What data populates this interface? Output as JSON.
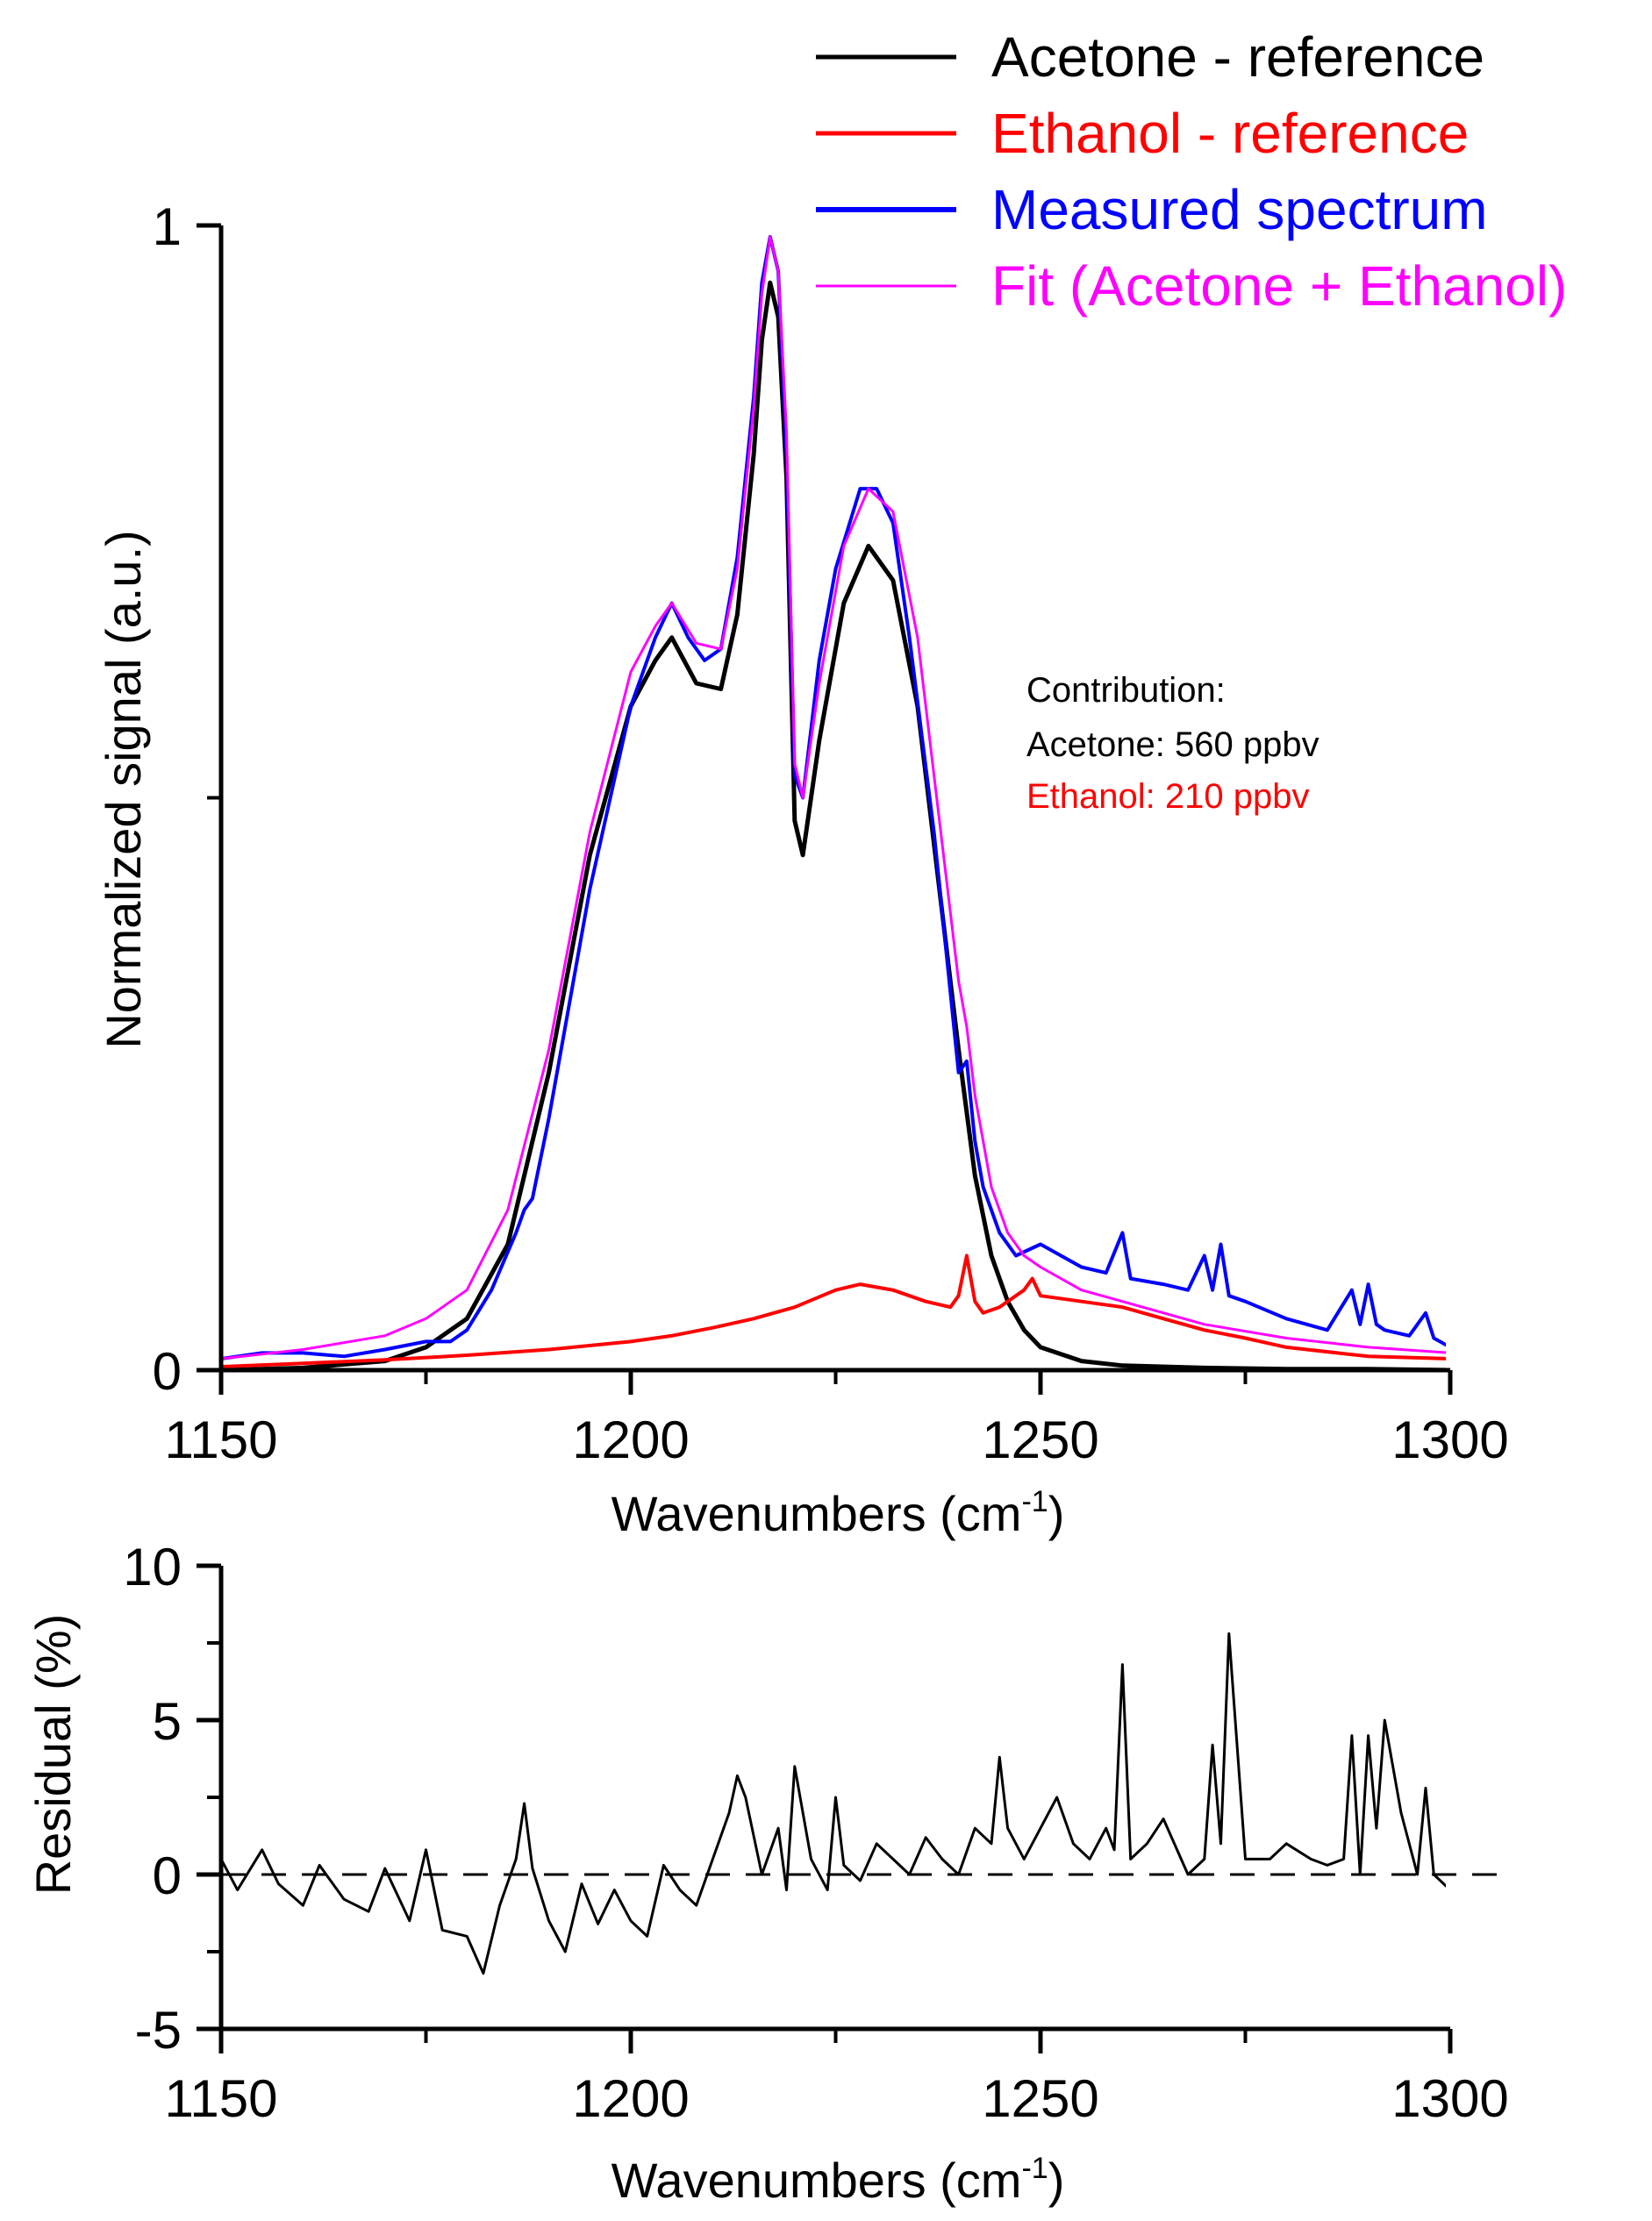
{
  "chart_data": [
    {
      "type": "line",
      "xlabel": "Wavenumbers (cm",
      "xlabel_sup": "-1",
      "xlabel_close": ")",
      "ylabel": "Normalized signal (a.u.)",
      "xlim": [
        1150,
        1300
      ],
      "ylim": [
        0,
        1
      ],
      "xticks": [
        1150,
        1200,
        1250,
        1300
      ],
      "xtick_labels": [
        "1150",
        "1200",
        "1250",
        "1300"
      ],
      "yticks": [
        0,
        1
      ],
      "ytick_labels": [
        "0",
        "1"
      ],
      "legend": {
        "position": "top-right",
        "entries": [
          {
            "label": "Acetone - reference",
            "color": "#000000"
          },
          {
            "label": "Ethanol - reference",
            "color": "#ff0000"
          },
          {
            "label": "Measured spectrum",
            "color": "#0000ff"
          },
          {
            "label": "Fit (Acetone + Ethanol)",
            "color": "#ff00ff"
          }
        ]
      },
      "annotation": {
        "title": "Contribution:",
        "acetone": "Acetone: 560 ppbv",
        "ethanol": "Ethanol: 210 ppbv",
        "acetone_color": "#000000",
        "ethanol_color": "#ff0000"
      },
      "series": [
        {
          "name": "Acetone - reference",
          "color": "#000000",
          "x": [
            1150,
            1160,
            1170,
            1175,
            1180,
            1185,
            1190,
            1195,
            1200,
            1203,
            1205,
            1208,
            1211,
            1213,
            1215,
            1216,
            1217,
            1218,
            1219,
            1220,
            1221,
            1223,
            1226,
            1229,
            1232,
            1235,
            1238,
            1240,
            1242,
            1244,
            1246,
            1248,
            1250,
            1255,
            1260,
            1270,
            1280,
            1290,
            1300
          ],
          "y": [
            0.0,
            0.002,
            0.008,
            0.02,
            0.045,
            0.11,
            0.26,
            0.45,
            0.58,
            0.62,
            0.64,
            0.6,
            0.595,
            0.66,
            0.8,
            0.9,
            0.95,
            0.92,
            0.78,
            0.48,
            0.45,
            0.55,
            0.67,
            0.72,
            0.69,
            0.58,
            0.4,
            0.28,
            0.17,
            0.1,
            0.06,
            0.035,
            0.02,
            0.008,
            0.004,
            0.002,
            0.001,
            0.001,
            0.0
          ]
        },
        {
          "name": "Ethanol - reference",
          "color": "#ff0000",
          "x": [
            1150,
            1160,
            1170,
            1180,
            1190,
            1200,
            1205,
            1210,
            1215,
            1220,
            1225,
            1228,
            1232,
            1236,
            1239,
            1240,
            1241,
            1242,
            1243,
            1245,
            1248,
            1249,
            1250,
            1255,
            1260,
            1265,
            1270,
            1275,
            1280,
            1290,
            1300
          ],
          "y": [
            0.003,
            0.006,
            0.009,
            0.013,
            0.018,
            0.025,
            0.03,
            0.037,
            0.045,
            0.055,
            0.07,
            0.075,
            0.07,
            0.06,
            0.055,
            0.065,
            0.1,
            0.06,
            0.05,
            0.055,
            0.07,
            0.08,
            0.065,
            0.06,
            0.055,
            0.045,
            0.035,
            0.028,
            0.02,
            0.012,
            0.01
          ]
        },
        {
          "name": "Measured spectrum",
          "color": "#0000ff",
          "x": [
            1150,
            1155,
            1160,
            1165,
            1170,
            1175,
            1178,
            1180,
            1183,
            1186,
            1187,
            1188,
            1190,
            1195,
            1200,
            1203,
            1205,
            1207,
            1209,
            1211,
            1213,
            1215,
            1216,
            1217,
            1218,
            1219,
            1220,
            1221,
            1222,
            1223,
            1225,
            1228,
            1230,
            1232,
            1234,
            1237,
            1239,
            1240,
            1241,
            1242,
            1243,
            1245,
            1247,
            1250,
            1255,
            1258,
            1260,
            1261,
            1265,
            1268,
            1270,
            1271,
            1272,
            1273,
            1275,
            1280,
            1285,
            1288,
            1289,
            1290,
            1291,
            1292,
            1295,
            1297,
            1298,
            1300
          ],
          "y": [
            0.01,
            0.015,
            0.015,
            0.012,
            0.018,
            0.025,
            0.025,
            0.035,
            0.07,
            0.12,
            0.14,
            0.15,
            0.22,
            0.42,
            0.58,
            0.64,
            0.67,
            0.64,
            0.62,
            0.63,
            0.71,
            0.85,
            0.95,
            0.99,
            0.96,
            0.8,
            0.52,
            0.5,
            0.56,
            0.62,
            0.7,
            0.77,
            0.77,
            0.74,
            0.64,
            0.47,
            0.33,
            0.26,
            0.27,
            0.2,
            0.16,
            0.12,
            0.1,
            0.11,
            0.09,
            0.085,
            0.12,
            0.08,
            0.075,
            0.07,
            0.1,
            0.07,
            0.11,
            0.065,
            0.06,
            0.045,
            0.035,
            0.07,
            0.04,
            0.075,
            0.04,
            0.035,
            0.03,
            0.05,
            0.028,
            0.02
          ]
        },
        {
          "name": "Fit (Acetone + Ethanol)",
          "color": "#ff00ff",
          "x": [
            1150,
            1160,
            1170,
            1175,
            1180,
            1185,
            1190,
            1195,
            1200,
            1203,
            1205,
            1208,
            1211,
            1213,
            1215,
            1216,
            1217,
            1218,
            1219,
            1220,
            1221,
            1223,
            1226,
            1229,
            1232,
            1235,
            1238,
            1240,
            1241,
            1242,
            1244,
            1246,
            1248,
            1250,
            1255,
            1260,
            1270,
            1280,
            1290,
            1300
          ],
          "y": [
            0.01,
            0.018,
            0.03,
            0.045,
            0.07,
            0.14,
            0.28,
            0.47,
            0.61,
            0.65,
            0.67,
            0.635,
            0.63,
            0.7,
            0.84,
            0.94,
            0.99,
            0.96,
            0.82,
            0.53,
            0.5,
            0.6,
            0.72,
            0.77,
            0.75,
            0.64,
            0.46,
            0.34,
            0.3,
            0.24,
            0.16,
            0.12,
            0.1,
            0.09,
            0.07,
            0.06,
            0.04,
            0.028,
            0.02,
            0.015
          ]
        }
      ]
    },
    {
      "type": "line",
      "xlabel": "Wavenumbers (cm",
      "xlabel_sup": "-1",
      "xlabel_close": ")",
      "ylabel": "Residual (%)",
      "xlim": [
        1150,
        1300
      ],
      "ylim": [
        -5,
        10
      ],
      "xticks": [
        1150,
        1200,
        1250,
        1300
      ],
      "xtick_labels": [
        "1150",
        "1200",
        "1250",
        "1300"
      ],
      "yticks": [
        -5,
        0,
        5,
        10
      ],
      "ytick_labels": [
        "-5",
        "0",
        "5",
        "10"
      ],
      "zero_line": {
        "y": 0,
        "style": "dashed"
      },
      "series": [
        {
          "name": "Residual",
          "color": "#000000",
          "x": [
            1150,
            1152,
            1155,
            1157,
            1160,
            1162,
            1165,
            1168,
            1170,
            1173,
            1175,
            1177,
            1180,
            1182,
            1184,
            1186,
            1187,
            1188,
            1190,
            1192,
            1194,
            1196,
            1198,
            1200,
            1202,
            1204,
            1206,
            1208,
            1210,
            1212,
            1213,
            1214,
            1216,
            1218,
            1219,
            1220,
            1222,
            1224,
            1225,
            1226,
            1228,
            1230,
            1232,
            1234,
            1236,
            1238,
            1240,
            1242,
            1244,
            1245,
            1246,
            1248,
            1250,
            1252,
            1254,
            1256,
            1258,
            1259,
            1260,
            1261,
            1263,
            1265,
            1268,
            1270,
            1271,
            1272,
            1273,
            1275,
            1278,
            1280,
            1283,
            1285,
            1287,
            1288,
            1289,
            1290,
            1291,
            1292,
            1294,
            1296,
            1297,
            1298,
            1300
          ],
          "y": [
            0.5,
            -0.5,
            0.8,
            -0.3,
            -1.0,
            0.3,
            -0.8,
            -1.2,
            0.2,
            -1.5,
            0.8,
            -1.8,
            -2.0,
            -3.2,
            -1.0,
            0.5,
            2.3,
            0.2,
            -1.5,
            -2.5,
            -0.3,
            -1.6,
            -0.5,
            -1.5,
            -2.0,
            0.3,
            -0.5,
            -1.0,
            0.5,
            2.0,
            3.2,
            2.5,
            0.0,
            1.5,
            -0.5,
            3.5,
            0.5,
            -0.5,
            2.5,
            0.3,
            -0.2,
            1.0,
            0.5,
            0.0,
            1.2,
            0.5,
            0.0,
            1.5,
            1.0,
            3.8,
            1.5,
            0.5,
            1.5,
            2.5,
            1.0,
            0.5,
            1.5,
            0.8,
            6.8,
            0.5,
            1.0,
            1.8,
            0.0,
            0.5,
            4.2,
            1.0,
            7.8,
            0.5,
            0.5,
            1.0,
            0.5,
            0.3,
            0.5,
            4.5,
            0.0,
            4.5,
            1.5,
            5.0,
            2.0,
            0.0,
            2.8,
            0.0,
            -0.5
          ]
        }
      ]
    }
  ]
}
